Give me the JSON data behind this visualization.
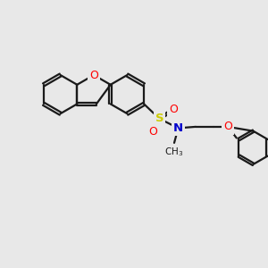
{
  "background_color": "#e8e8e8",
  "bond_color": "#1a1a1a",
  "O_color": "#ff0000",
  "N_color": "#0000cc",
  "S_color": "#cccc00",
  "xlim": [
    0,
    10
  ],
  "ylim": [
    0,
    10
  ],
  "figsize": [
    3.0,
    3.0
  ],
  "dpi": 100
}
